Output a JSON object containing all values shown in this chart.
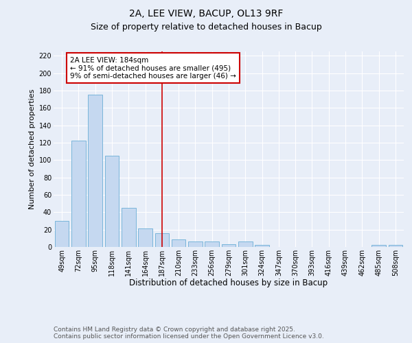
{
  "title1": "2A, LEE VIEW, BACUP, OL13 9RF",
  "title2": "Size of property relative to detached houses in Bacup",
  "xlabel": "Distribution of detached houses by size in Bacup",
  "ylabel": "Number of detached properties",
  "categories": [
    "49sqm",
    "72sqm",
    "95sqm",
    "118sqm",
    "141sqm",
    "164sqm",
    "187sqm",
    "210sqm",
    "233sqm",
    "256sqm",
    "279sqm",
    "301sqm",
    "324sqm",
    "347sqm",
    "370sqm",
    "393sqm",
    "416sqm",
    "439sqm",
    "462sqm",
    "485sqm",
    "508sqm"
  ],
  "values": [
    30,
    122,
    175,
    105,
    45,
    21,
    16,
    9,
    6,
    6,
    3,
    6,
    2,
    0,
    0,
    0,
    0,
    0,
    0,
    2,
    2
  ],
  "bar_color": "#c5d8f0",
  "bar_edge_color": "#6aaed6",
  "vline_x_index": 6,
  "vline_color": "#cc0000",
  "annotation_text": "2A LEE VIEW: 184sqm\n← 91% of detached houses are smaller (495)\n9% of semi-detached houses are larger (46) →",
  "annotation_box_color": "#ffffff",
  "annotation_box_edge": "#cc0000",
  "ylim": [
    0,
    225
  ],
  "yticks": [
    0,
    20,
    40,
    60,
    80,
    100,
    120,
    140,
    160,
    180,
    200,
    220
  ],
  "background_color": "#e8eef8",
  "grid_color": "#ffffff",
  "footer_text": "Contains HM Land Registry data © Crown copyright and database right 2025.\nContains public sector information licensed under the Open Government Licence v3.0.",
  "title1_fontsize": 10,
  "title2_fontsize": 9,
  "xlabel_fontsize": 8.5,
  "ylabel_fontsize": 8,
  "tick_fontsize": 7,
  "annotation_fontsize": 7.5,
  "footer_fontsize": 6.5
}
